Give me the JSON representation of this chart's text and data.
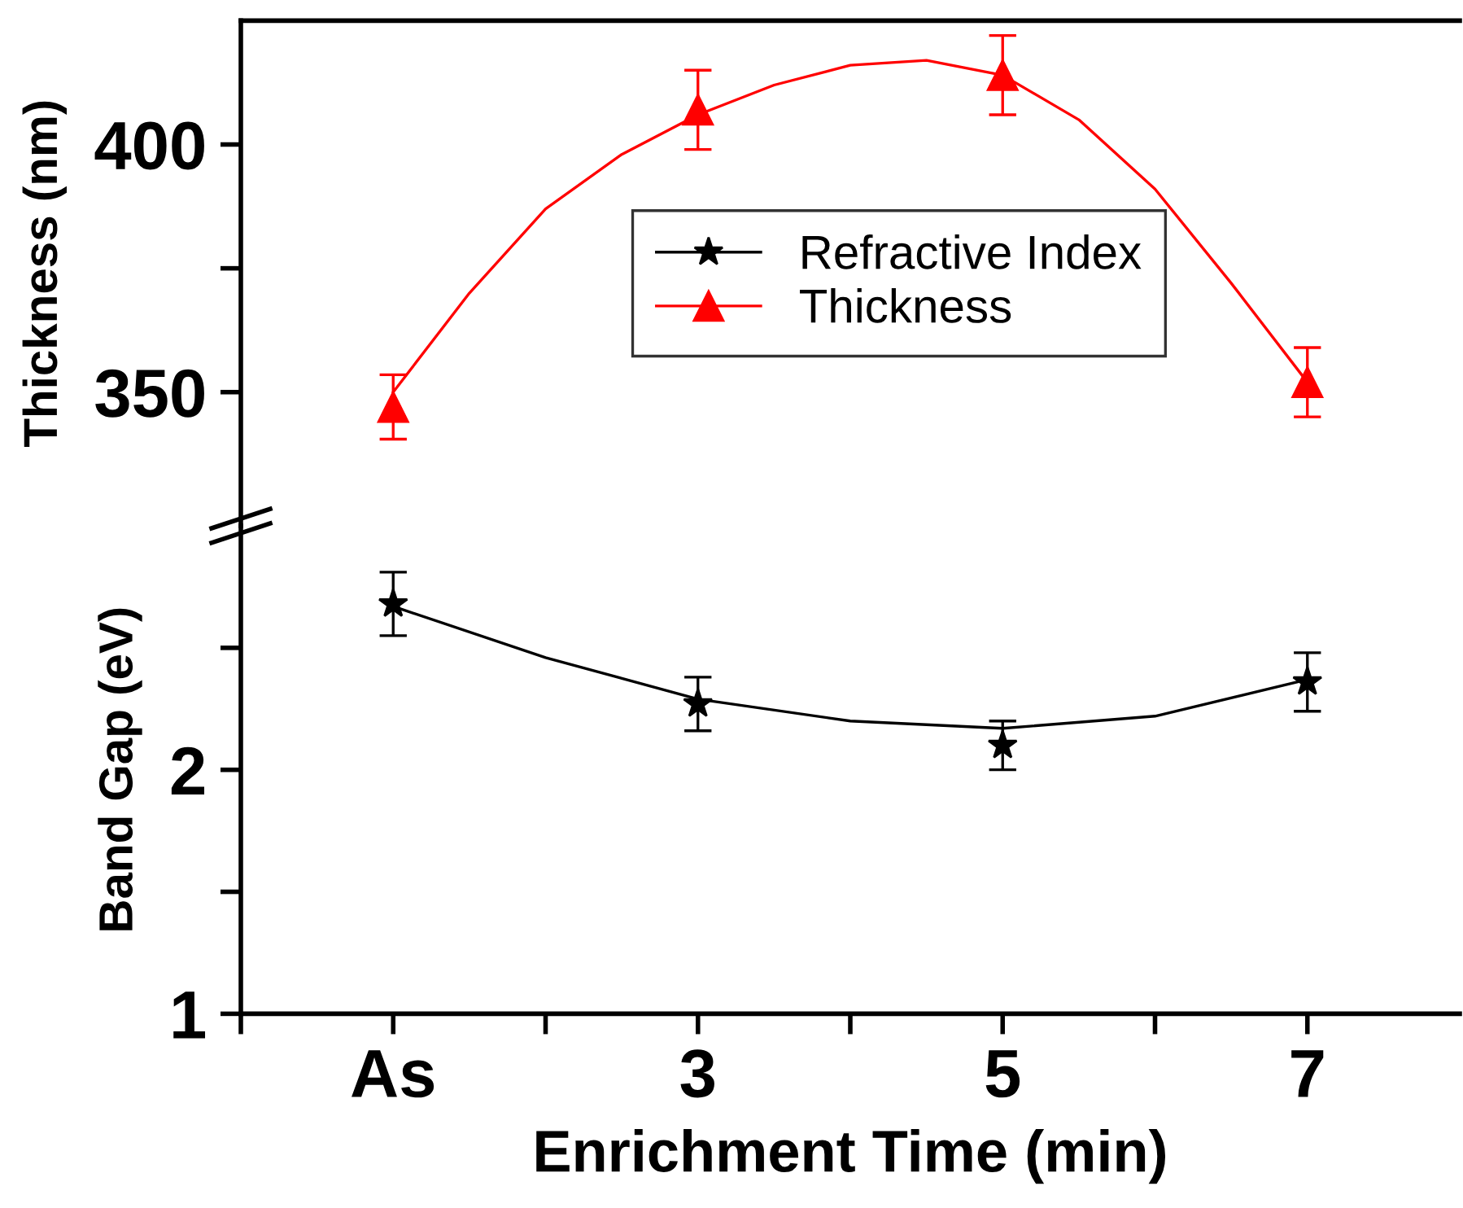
{
  "chart_data": [
    {
      "type": "scatter",
      "ylabel": "Thickness (nm)",
      "xlim": [
        0,
        8
      ],
      "ylim": [
        323,
        425
      ],
      "yticks": [
        350,
        {
          "value": 375,
          "label": null
        },
        400
      ],
      "tick_labels": "y",
      "legend": "center",
      "grid": false,
      "series": [
        {
          "name": "Thickness",
          "color": "#ff0000",
          "marker": "triangle",
          "x": [
            1,
            3,
            5,
            7
          ],
          "values": [
            347,
            407,
            414,
            352
          ],
          "errors": [
            6.5,
            8,
            8,
            7
          ]
        },
        {
          "type": "line",
          "color": "#ff0000",
          "marker": "none",
          "line_style": "solid",
          "x": [
            1,
            1.5,
            2,
            2.5,
            3,
            3.5,
            4,
            4.5,
            5,
            5.5,
            6,
            6.5,
            7
          ],
          "values": [
            350,
            370,
            387,
            398,
            406,
            412,
            416,
            417,
            414,
            405,
            391,
            372,
            352
          ]
        }
      ]
    },
    {
      "type": "scatter",
      "ylabel": "Band Gap (eV)",
      "xlabel": "Enrichment Time (min)",
      "xlim": [
        0,
        8
      ],
      "xticks": [
        {
          "value": 0,
          "label": null
        },
        {
          "value": 1,
          "label": "As"
        },
        {
          "value": 2,
          "label": null
        },
        3,
        {
          "value": 4,
          "label": null
        },
        5,
        {
          "value": 6,
          "label": null
        },
        7
      ],
      "ylim": [
        1,
        3
      ],
      "yticks": [
        1,
        {
          "value": 1.5,
          "label": null
        },
        2,
        {
          "value": 2.5,
          "label": null
        }
      ],
      "legend": "top",
      "grid": false,
      "series": [
        {
          "name": "Refractive Index",
          "color": "#000000",
          "marker": "star",
          "x": [
            1,
            3,
            5,
            7
          ],
          "values": [
            2.68,
            2.27,
            2.1,
            2.36
          ],
          "errors": [
            0.13,
            0.11,
            0.1,
            0.12
          ]
        },
        {
          "type": "line",
          "color": "#000000",
          "marker": "none",
          "line_style": "solid",
          "x": [
            1,
            2,
            3,
            4,
            5,
            6,
            7
          ],
          "values": [
            2.67,
            2.46,
            2.29,
            2.2,
            2.17,
            2.22,
            2.37
          ]
        }
      ]
    }
  ]
}
